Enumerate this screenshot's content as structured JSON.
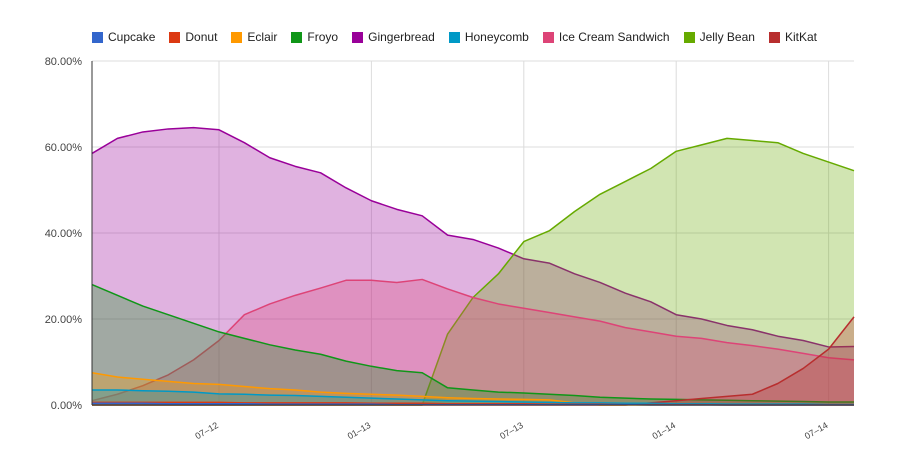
{
  "chart_data": {
    "type": "area",
    "legend_position": "top",
    "grid": true,
    "ylim": [
      0,
      80
    ],
    "y_ticks": [
      "0.00%",
      "20.00%",
      "40.00%",
      "60.00%",
      "80.00%"
    ],
    "y_tick_values": [
      0,
      20,
      40,
      60,
      80
    ],
    "x_ticks": [
      "07–12",
      "01–13",
      "07–13",
      "01–14",
      "07–14"
    ],
    "x_tick_positions": [
      5,
      11,
      17,
      23,
      29
    ],
    "x_index_range": [
      0,
      30
    ],
    "series": [
      {
        "name": "Cupcake",
        "color": "#3366cc",
        "values": [
          0.4,
          0.4,
          0.4,
          0.3,
          0.3,
          0.3,
          0.3,
          0.2,
          0.2,
          0.2,
          0.2,
          0.2,
          0.1,
          0.1,
          0.1,
          0.1,
          0.1,
          0.1,
          0.1,
          0.1,
          0.1,
          0.1,
          0.0,
          0.0,
          0.0,
          0.0,
          0.0,
          0.0,
          0.0,
          0.0,
          0.0
        ]
      },
      {
        "name": "Donut",
        "color": "#dc3912",
        "values": [
          0.6,
          0.6,
          0.6,
          0.6,
          0.6,
          0.6,
          0.5,
          0.5,
          0.5,
          0.5,
          0.5,
          0.4,
          0.4,
          0.4,
          0.3,
          0.3,
          0.3,
          0.3,
          0.2,
          0.2,
          0.2,
          0.1,
          0.1,
          0.1,
          0.1,
          0.0,
          0.0,
          0.0,
          0.0,
          0.0,
          0.0
        ]
      },
      {
        "name": "Eclair",
        "color": "#ff9900",
        "values": [
          7.5,
          6.5,
          6.0,
          5.5,
          5.0,
          4.8,
          4.3,
          3.8,
          3.5,
          3.0,
          2.7,
          2.5,
          2.3,
          2.0,
          1.7,
          1.5,
          1.4,
          1.3,
          1.2,
          0.5,
          0.0,
          0.0,
          0.0,
          0.0,
          0.0,
          0.0,
          0.0,
          0.0,
          0.0,
          0.0,
          0.0
        ]
      },
      {
        "name": "Froyo",
        "color": "#109618",
        "values": [
          28.0,
          25.5,
          23.0,
          21.0,
          19.0,
          17.0,
          15.5,
          14.0,
          12.8,
          11.8,
          10.2,
          9.0,
          8.0,
          7.5,
          4.0,
          3.5,
          3.0,
          2.8,
          2.5,
          2.2,
          1.8,
          1.6,
          1.4,
          1.3,
          1.2,
          1.1,
          1.0,
          0.9,
          0.8,
          0.7,
          0.7
        ]
      },
      {
        "name": "Gingerbread",
        "color": "#990099",
        "values": [
          58.5,
          62.0,
          63.5,
          64.2,
          64.5,
          64.0,
          61.0,
          57.5,
          55.5,
          54.0,
          50.5,
          47.5,
          45.5,
          44.0,
          39.5,
          38.5,
          36.5,
          34.0,
          33.0,
          30.5,
          28.5,
          26.0,
          24.0,
          21.0,
          20.0,
          18.5,
          17.5,
          16.0,
          15.0,
          13.5,
          13.6
        ]
      },
      {
        "name": "Honeycomb",
        "color": "#0099c6",
        "values": [
          3.5,
          3.5,
          3.3,
          3.2,
          3.0,
          2.6,
          2.5,
          2.3,
          2.2,
          2.0,
          1.8,
          1.6,
          1.4,
          1.2,
          1.0,
          0.9,
          0.8,
          0.7,
          0.6,
          0.5,
          0.5,
          0.4,
          0.4,
          0.3,
          0.3,
          0.2,
          0.2,
          0.2,
          0.2,
          0.1,
          0.1
        ]
      },
      {
        "name": "Ice Cream Sandwich",
        "color": "#dd4477",
        "values": [
          1.0,
          2.5,
          4.5,
          7.0,
          10.5,
          15.0,
          21.0,
          23.5,
          25.5,
          27.2,
          29.0,
          29.0,
          28.5,
          29.2,
          27.0,
          25.0,
          23.5,
          22.5,
          21.5,
          20.5,
          19.5,
          18.0,
          17.0,
          16.0,
          15.5,
          14.5,
          13.8,
          13.0,
          12.0,
          11.0,
          10.5
        ]
      },
      {
        "name": "Jelly Bean",
        "color": "#66aa00",
        "values": [
          0.0,
          0.0,
          0.0,
          0.0,
          0.0,
          0.0,
          0.0,
          0.0,
          0.0,
          0.0,
          0.0,
          0.0,
          0.0,
          0.0,
          16.5,
          25.0,
          30.5,
          38.0,
          40.5,
          45.0,
          49.0,
          52.0,
          55.0,
          59.0,
          60.5,
          62.0,
          61.5,
          61.0,
          58.5,
          56.5,
          54.5
        ]
      },
      {
        "name": "KitKat",
        "color": "#b82e2e",
        "values": [
          0.0,
          0.0,
          0.0,
          0.0,
          0.0,
          0.0,
          0.0,
          0.0,
          0.0,
          0.0,
          0.0,
          0.0,
          0.0,
          0.0,
          0.0,
          0.0,
          0.0,
          0.0,
          0.0,
          0.0,
          0.0,
          0.0,
          0.5,
          1.0,
          1.5,
          2.0,
          2.5,
          5.0,
          8.5,
          13.0,
          20.5
        ]
      }
    ]
  }
}
